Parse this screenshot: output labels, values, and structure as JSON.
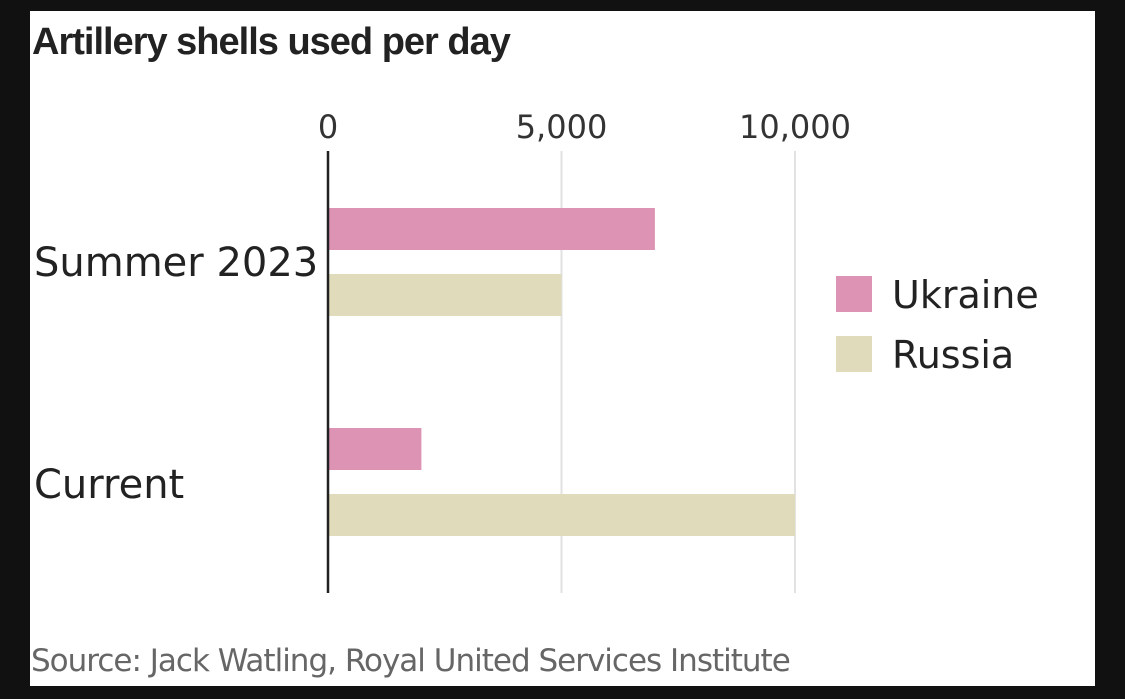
{
  "chart_data": {
    "type": "bar",
    "orientation": "horizontal",
    "title": "Artillery shells used per day",
    "source": "Source: Jack Watling, Royal United Services Institute",
    "categories": [
      "Summer 2023",
      "Current"
    ],
    "series": [
      {
        "name": "Ukraine",
        "color": "#dc93b4",
        "values": [
          7000,
          2000
        ]
      },
      {
        "name": "Russia",
        "color": "#dfdbbb",
        "values": [
          5000,
          10000
        ]
      }
    ],
    "xticks": [
      0,
      5000,
      10000
    ],
    "xtick_labels": [
      "0",
      "5,000",
      "10,000"
    ],
    "xlim": [
      0,
      10000
    ],
    "grid": true,
    "legend_position": "right"
  }
}
